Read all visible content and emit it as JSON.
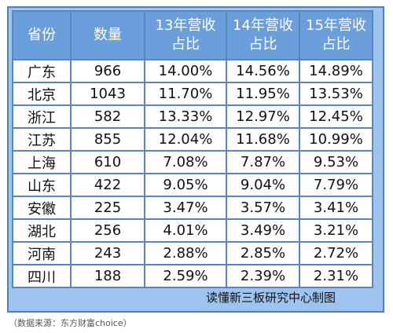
{
  "table": {
    "headers": [
      "省份",
      "数量",
      "13年营收\n占比",
      "14年营收\n占比",
      "15年营收\n占比"
    ],
    "rows": [
      [
        "广东",
        "966",
        "14.00%",
        "14.56%",
        "14.89%"
      ],
      [
        "北京",
        "1043",
        "11.70%",
        "11.95%",
        "13.53%"
      ],
      [
        "浙江",
        "582",
        "13.33%",
        "12.97%",
        "12.45%"
      ],
      [
        "江苏",
        "855",
        "12.04%",
        "11.68%",
        "10.99%"
      ],
      [
        "上海",
        "610",
        "7.08%",
        "7.87%",
        "9.53%"
      ],
      [
        "山东",
        "422",
        "9.05%",
        "9.04%",
        "7.79%"
      ],
      [
        "安徽",
        "225",
        "3.47%",
        "3.57%",
        "3.41%"
      ],
      [
        "湖北",
        "256",
        "4.01%",
        "3.49%",
        "3.21%"
      ],
      [
        "河南",
        "243",
        "2.88%",
        "2.85%",
        "2.72%"
      ],
      [
        "四川",
        "188",
        "2.59%",
        "2.39%",
        "2.31%"
      ]
    ]
  },
  "footer": {
    "credit": "读懂新三板研究中心制图"
  },
  "source_note": "（数据来源：东方财富choice）",
  "colors": {
    "header_bg": "#6b9fdc",
    "frame_bg": "#9ec3ee",
    "grid": "#5a86c0"
  }
}
